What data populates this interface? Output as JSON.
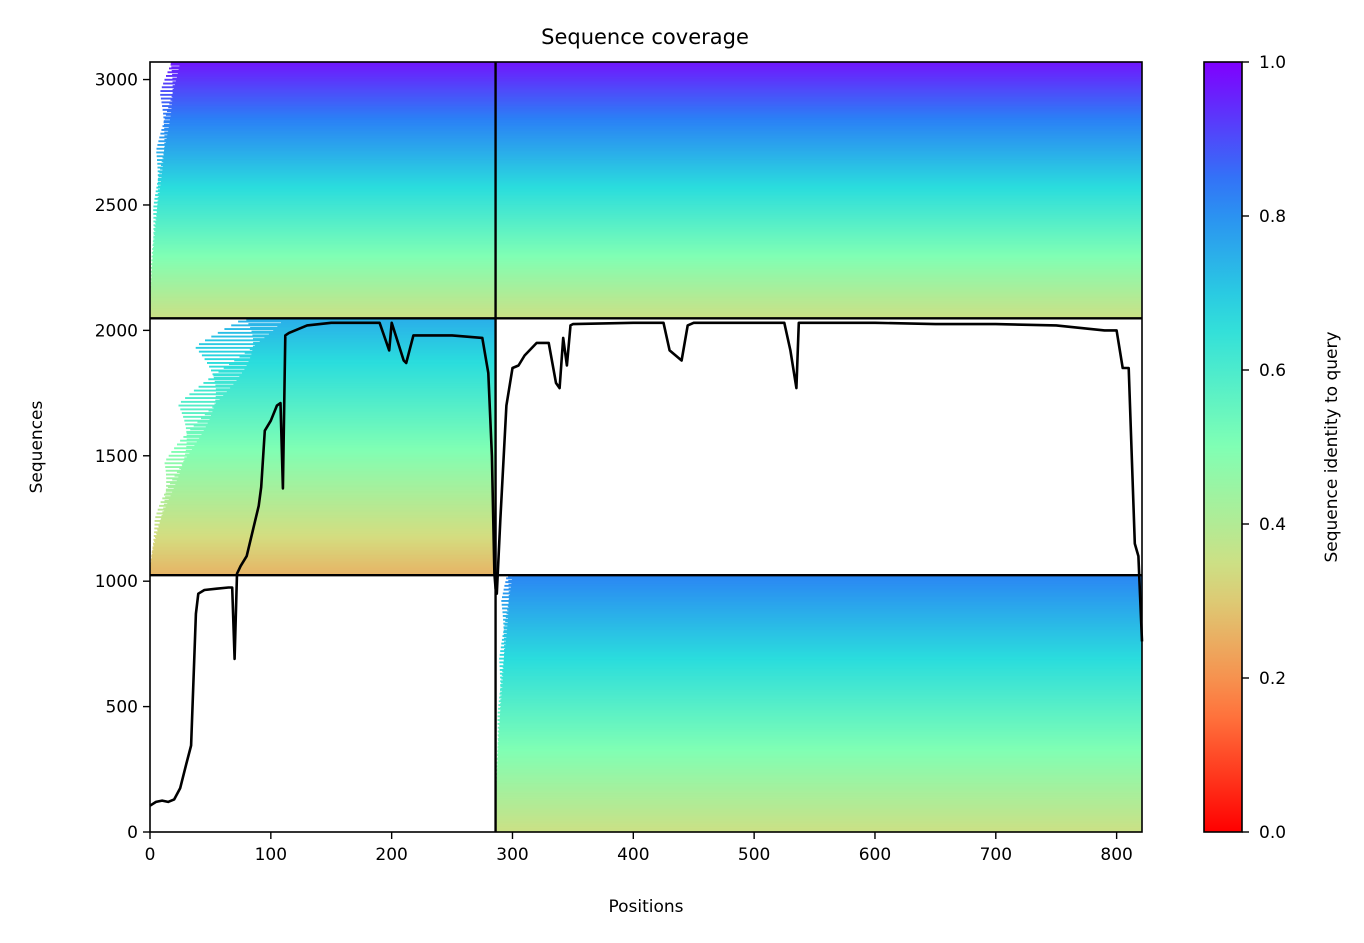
{
  "chart_data": {
    "type": "heatmap",
    "title": "Sequence coverage",
    "xlabel": "Positions",
    "ylabel": "Sequences",
    "xlim": [
      0,
      821
    ],
    "ylim": [
      0,
      3070
    ],
    "x_ticks": [
      0,
      100,
      200,
      300,
      400,
      500,
      600,
      700,
      800
    ],
    "y_ticks": [
      0,
      500,
      1000,
      1500,
      2000,
      2500,
      3000
    ],
    "grid": false,
    "legend": "none",
    "colorbar": {
      "label": "Sequence identity to query",
      "range": [
        0,
        1
      ],
      "ticks": [
        "0.0",
        "0.2",
        "0.4",
        "0.6",
        "0.8",
        "1.0"
      ],
      "colormap": "rainbow_r",
      "colors": [
        "#ff0000",
        "#ff7f43",
        "#d4dd80",
        "#80ffb4",
        "#2adddd",
        "#2b7ff6",
        "#8000ff"
      ]
    },
    "chain_boundary_x": 286,
    "block_boundaries_y": [
      1024,
      2048
    ],
    "blocks": [
      {
        "rows": [
          2048,
          3070
        ],
        "x_start": [
          0,
          25
        ],
        "x_end": [
          286,
          821
        ],
        "identity_range": [
          0.35,
          0.97
        ]
      },
      {
        "rows": [
          1024,
          2048
        ],
        "x_start": [
          0,
          112
        ],
        "x_end": [
          286,
          286
        ],
        "identity_range": [
          0.26,
          0.75
        ]
      },
      {
        "rows": [
          0,
          1024
        ],
        "x_start": [
          286,
          300
        ],
        "x_end": [
          821,
          821
        ],
        "identity_range": [
          0.35,
          0.82
        ]
      }
    ],
    "coverage_line": {
      "name": "coverage",
      "color": "#000000",
      "x": [
        0,
        5,
        10,
        15,
        20,
        25,
        30,
        34,
        38,
        40,
        45,
        55,
        65,
        68,
        70,
        72,
        75,
        80,
        90,
        92,
        95,
        100,
        105,
        108,
        110,
        112,
        115,
        130,
        150,
        170,
        190,
        198,
        200,
        210,
        212,
        218,
        230,
        250,
        275,
        280,
        283,
        285,
        286,
        287,
        290,
        295,
        300,
        305,
        310,
        320,
        330,
        336,
        339,
        342,
        345,
        348,
        350,
        400,
        425,
        430,
        440,
        445,
        450,
        500,
        525,
        530,
        535,
        537,
        540,
        600,
        650,
        700,
        750,
        790,
        800,
        805,
        810,
        815,
        818,
        821
      ],
      "y": [
        105,
        120,
        125,
        120,
        130,
        175,
        270,
        345,
        870,
        950,
        965,
        970,
        975,
        975,
        690,
        1030,
        1060,
        1100,
        1300,
        1375,
        1600,
        1640,
        1700,
        1710,
        1370,
        1980,
        1990,
        2020,
        2030,
        2030,
        2030,
        1920,
        2030,
        1880,
        1870,
        1980,
        1980,
        1980,
        1970,
        1830,
        1500,
        1030,
        970,
        950,
        1250,
        1700,
        1850,
        1860,
        1900,
        1950,
        1950,
        1790,
        1770,
        1970,
        1860,
        2020,
        2025,
        2030,
        2030,
        1920,
        1880,
        2020,
        2030,
        2030,
        2030,
        1920,
        1770,
        2030,
        2030,
        2030,
        2025,
        2025,
        2020,
        2000,
        2000,
        1850,
        1850,
        1150,
        1100,
        760
      ]
    }
  }
}
